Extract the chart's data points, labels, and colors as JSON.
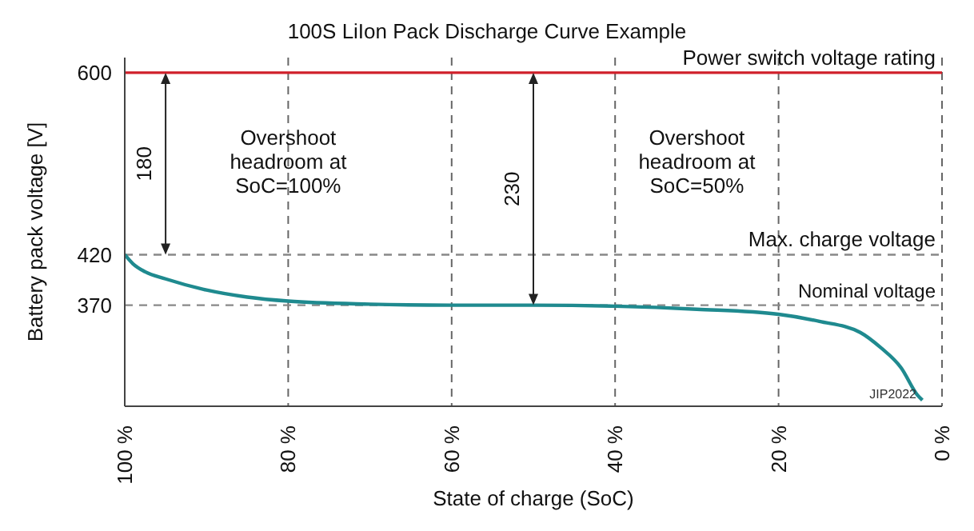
{
  "chart_data": {
    "type": "line",
    "title": "100S LiIon Pack Discharge Curve Example",
    "xlabel": "State of charge (SoC)",
    "ylabel": "Battery pack voltage [V]",
    "x": [
      100,
      99,
      97.5,
      95,
      90,
      85,
      80,
      70,
      60,
      50,
      40,
      30,
      20,
      15,
      10,
      7.5,
      5,
      3,
      2.4
    ],
    "series": [
      {
        "color": "#1f8a8f",
        "values": [
          420,
          411,
          403,
          396,
          385,
          378,
          374,
          371,
          370,
          370,
          369,
          366,
          361,
          354,
          343,
          328,
          308,
          281,
          276
        ]
      }
    ],
    "xlim": [
      100,
      0
    ],
    "xticks": [
      {
        "value": 100,
        "label": "100 %"
      },
      {
        "value": 80,
        "label": "80 %"
      },
      {
        "value": 60,
        "label": "60 %"
      },
      {
        "value": 40,
        "label": "40 %"
      },
      {
        "value": 20,
        "label": "20 %"
      },
      {
        "value": 0,
        "label": "0 %"
      }
    ],
    "ylim": [
      270,
      615
    ],
    "yticks": [
      370,
      420,
      600
    ],
    "grid": "x",
    "legend": false,
    "marker": "none",
    "ref_lines": [
      {
        "axis": "y",
        "value": 600,
        "label": "Power switch voltage rating",
        "color": "#d0202a",
        "line_style": "solid"
      },
      {
        "axis": "y",
        "value": 420,
        "label": "Max. charge voltage",
        "color": "#888888",
        "line_style": "dashed"
      },
      {
        "axis": "y",
        "value": 370,
        "label": "Nominal voltage",
        "color": "#888888",
        "line_style": "dashed"
      }
    ],
    "annotations": [
      "180",
      "230",
      "Overshoot headroom at SoC=100%",
      "Overshoot headroom at SoC=50%",
      "JIP2022"
    ]
  }
}
